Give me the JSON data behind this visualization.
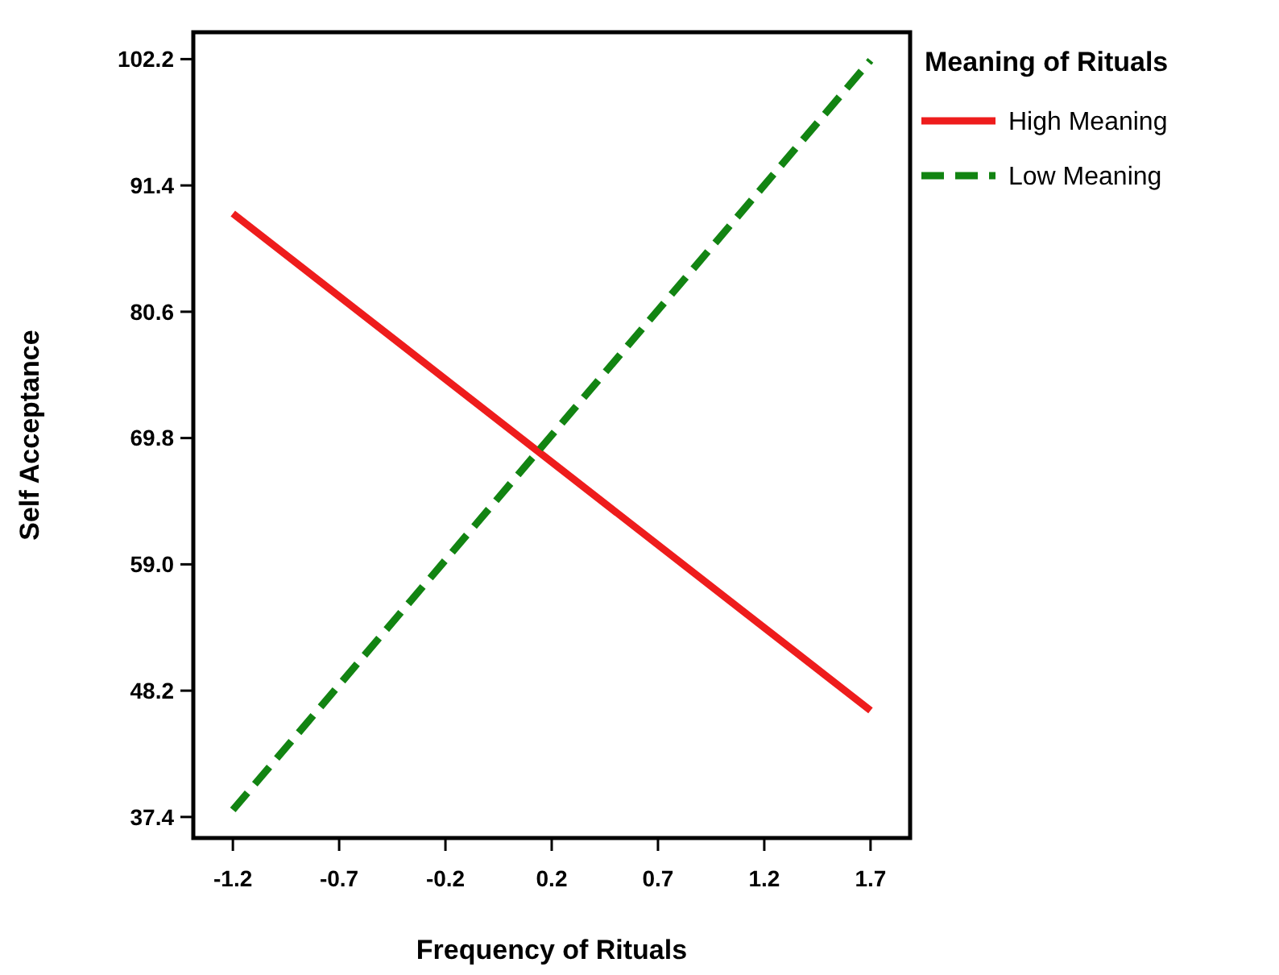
{
  "chart_data": {
    "type": "line",
    "xlabel": "Frequency of Rituals",
    "ylabel": "Self Acceptance",
    "legend_title": "Meaning of Rituals",
    "legend": "top right",
    "grid": false,
    "x": [
      -1.2,
      1.7
    ],
    "xlim": [
      -1.38,
      1.88
    ],
    "xticks": [
      {
        "value": -1.2,
        "label": "-1.2"
      },
      {
        "value": -0.7167,
        "label": "-0.7"
      },
      {
        "value": -0.2333,
        "label": "-0.2"
      },
      {
        "value": 0.25,
        "label": "0.2"
      },
      {
        "value": 0.7333,
        "label": "0.7"
      },
      {
        "value": 1.2167,
        "label": "1.2"
      },
      {
        "value": 1.7,
        "label": "1.7"
      }
    ],
    "ylim": [
      35.6,
      104.5
    ],
    "yticks": [
      {
        "value": 37.4,
        "label": "37.4"
      },
      {
        "value": 48.2,
        "label": "48.2"
      },
      {
        "value": 59.0,
        "label": "59.0"
      },
      {
        "value": 69.8,
        "label": "69.8"
      },
      {
        "value": 80.6,
        "label": "80.6"
      },
      {
        "value": 91.4,
        "label": "91.4"
      },
      {
        "value": 102.2,
        "label": "102.2"
      }
    ],
    "series": [
      {
        "name": "High Meaning",
        "color": "#ee1c1c",
        "values": [
          89.0,
          46.5
        ],
        "line_style": "solid"
      },
      {
        "name": "Low Meaning",
        "color": "#128412",
        "values": [
          38.0,
          102.1
        ],
        "line_style": "dashed"
      }
    ]
  }
}
